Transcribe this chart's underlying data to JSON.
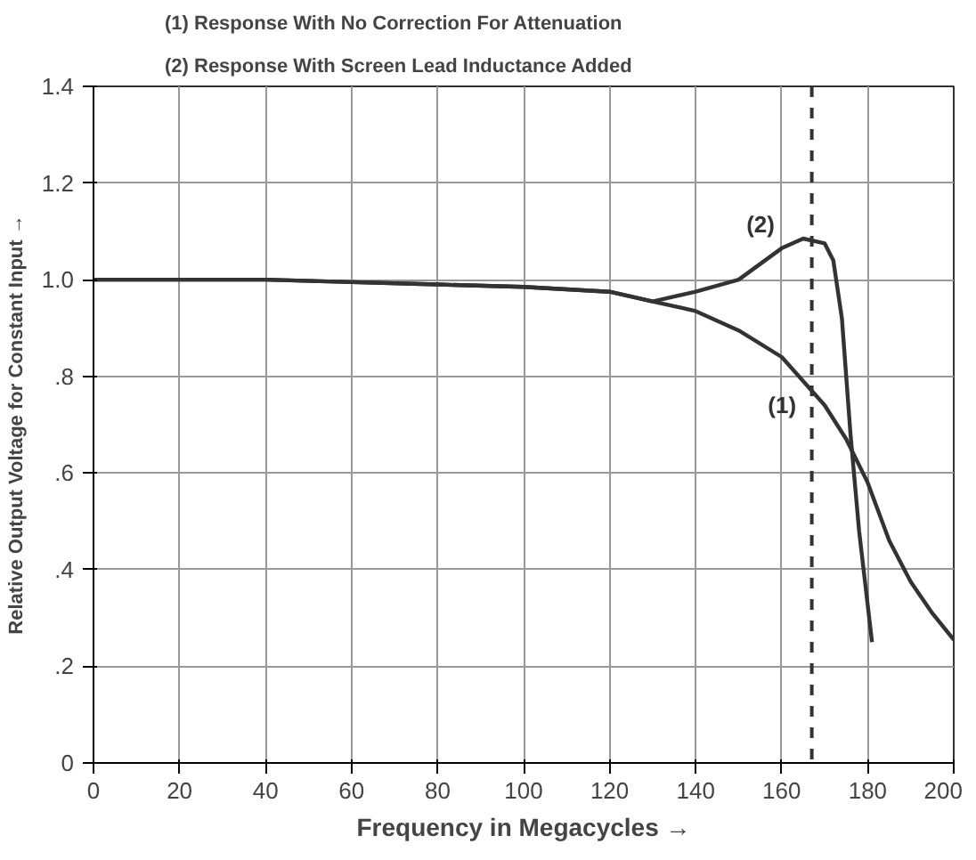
{
  "chart_data": {
    "type": "line",
    "xlabel": "Frequency in Megacycles →",
    "ylabel": "Relative Output Voltage for Constant Input →",
    "annotations": [
      "(1)  Response With No Correction For Attenuation",
      "(2)  Response With Screen Lead Inductance Added"
    ],
    "series": [
      {
        "name": "(1)",
        "color": "#333333",
        "x": [
          0,
          20,
          40,
          60,
          80,
          100,
          120,
          130,
          140,
          150,
          160,
          170,
          175,
          180,
          185,
          190,
          195,
          200
        ],
        "values": [
          1.0,
          1.0,
          1.0,
          0.995,
          0.99,
          0.985,
          0.975,
          0.955,
          0.935,
          0.895,
          0.84,
          0.74,
          0.67,
          0.58,
          0.46,
          0.375,
          0.31,
          0.255
        ]
      },
      {
        "name": "(2)",
        "color": "#333333",
        "x": [
          0,
          20,
          40,
          60,
          80,
          100,
          120,
          130,
          140,
          150,
          160,
          165,
          170,
          172,
          174,
          176,
          178,
          181
        ],
        "values": [
          1.0,
          1.0,
          1.0,
          0.995,
          0.99,
          0.985,
          0.975,
          0.955,
          0.975,
          1.0,
          1.065,
          1.085,
          1.075,
          1.04,
          0.92,
          0.68,
          0.48,
          0.25
        ]
      }
    ],
    "ref_lines": [
      {
        "axis": "x",
        "value": 167,
        "label": null,
        "line_style": "dashed",
        "color": "#333333"
      }
    ],
    "xlim": [
      0,
      200
    ],
    "ylim": [
      0,
      1.4
    ],
    "xticks": [
      0,
      20,
      40,
      60,
      80,
      100,
      120,
      140,
      160,
      180,
      200
    ],
    "yticks": [
      0,
      {
        "value": 0.2,
        "label": ".2"
      },
      {
        "value": 0.4,
        "label": ".4"
      },
      {
        "value": 0.6,
        "label": ".6"
      },
      {
        "value": 0.8,
        "label": ".8"
      },
      {
        "value": 1.0,
        "label": "1.0"
      },
      {
        "value": 1.2,
        "label": "1.2"
      },
      {
        "value": 1.4,
        "label": "1.4"
      }
    ],
    "grid": true,
    "marker": "none",
    "line_style": "solid"
  }
}
